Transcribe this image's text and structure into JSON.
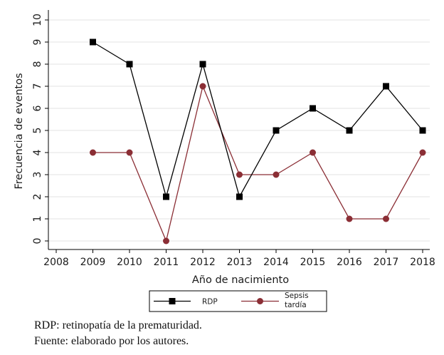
{
  "chart_data": {
    "type": "line",
    "title": "",
    "xlabel": "Año de nacimiento",
    "ylabel": "Frecuencia de eventos",
    "x": [
      2008,
      2009,
      2010,
      2011,
      2012,
      2013,
      2014,
      2015,
      2016,
      2017,
      2018
    ],
    "xlim": [
      2008,
      2018
    ],
    "ylim": [
      0,
      10
    ],
    "yticks": [
      0,
      1,
      2,
      3,
      4,
      5,
      6,
      7,
      8,
      9,
      10
    ],
    "grid": true,
    "legend_position": "bottom",
    "series": [
      {
        "name": "RDP",
        "marker": "square",
        "color": "#000000",
        "x": [
          2009,
          2010,
          2011,
          2012,
          2013,
          2014,
          2015,
          2016,
          2017,
          2018
        ],
        "values": [
          9,
          8,
          2,
          8,
          2,
          5,
          6,
          5,
          7,
          5
        ]
      },
      {
        "name": "Sepsis tardía",
        "marker": "circle",
        "color": "#8b2e35",
        "x": [
          2009,
          2010,
          2011,
          2012,
          2013,
          2014,
          2015,
          2016,
          2017,
          2018
        ],
        "values": [
          4,
          4,
          0,
          7,
          3,
          3,
          4,
          1,
          1,
          4
        ]
      }
    ],
    "legend_lines": [
      [
        "RDP"
      ],
      [
        "Sepsis",
        "tardía"
      ]
    ]
  },
  "notes": [
    "RDP: retinopatía de la prematuridad.",
    "Fuente: elaborado por los autores."
  ]
}
